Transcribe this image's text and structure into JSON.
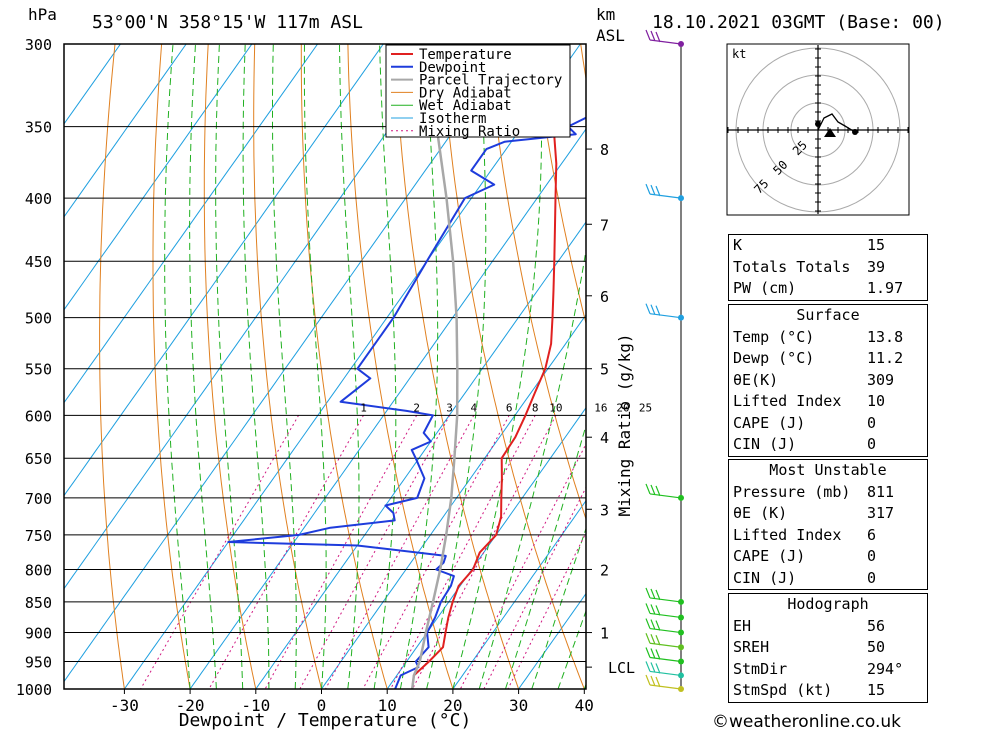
{
  "header": {
    "location": "53°00'N  358°15'W  117m  ASL",
    "datetime": "18.10.2021  03GMT  (Base: 00)",
    "pressure_unit": "hPa",
    "height_unit": "km",
    "height_unit2": "ASL"
  },
  "chart_data": {
    "type": "line",
    "xlabel": "Dewpoint / Temperature (°C)",
    "ylabel_right": "Mixing Ratio (g/kg)",
    "x_ticks": [
      -30,
      -20,
      -10,
      0,
      10,
      20,
      30,
      40
    ],
    "pressure_levels": [
      300,
      350,
      400,
      450,
      500,
      550,
      600,
      650,
      700,
      750,
      800,
      850,
      900,
      950,
      1000
    ],
    "height_labels": [
      {
        "label": "8",
        "p": 365
      },
      {
        "label": "7",
        "p": 420
      },
      {
        "label": "6",
        "p": 480
      },
      {
        "label": "5",
        "p": 550
      },
      {
        "label": "4",
        "p": 625
      },
      {
        "label": "3",
        "p": 715
      },
      {
        "label": "2",
        "p": 800
      },
      {
        "label": "1",
        "p": 900
      },
      {
        "label": "LCL",
        "p": 960
      }
    ],
    "mixing_ratio_labels": [
      "1",
      "2",
      "3",
      "4",
      "6",
      "8",
      "10",
      "16",
      "20",
      "25"
    ],
    "legend": [
      "Temperature",
      "Dewpoint",
      "Parcel Trajectory",
      "Dry Adiabat",
      "Wet Adiabat",
      "Isotherm",
      "Mixing Ratio"
    ],
    "series": [
      {
        "name": "Temperature",
        "color": "#e02020",
        "points": [
          [
            1000,
            13.8
          ],
          [
            975,
            12.6
          ],
          [
            950,
            13.4
          ],
          [
            925,
            14.0
          ],
          [
            900,
            12.8
          ],
          [
            875,
            11.6
          ],
          [
            850,
            10.6
          ],
          [
            825,
            9.8
          ],
          [
            800,
            10.2
          ],
          [
            775,
            9.4
          ],
          [
            750,
            10.0
          ],
          [
            725,
            8.8
          ],
          [
            700,
            6.8
          ],
          [
            675,
            4.8
          ],
          [
            650,
            2.6
          ],
          [
            625,
            2.4
          ],
          [
            600,
            1.6
          ],
          [
            575,
            0.6
          ],
          [
            550,
            -0.4
          ],
          [
            525,
            -2.2
          ],
          [
            500,
            -4.8
          ],
          [
            475,
            -7.6
          ],
          [
            450,
            -10.6
          ],
          [
            425,
            -13.8
          ],
          [
            400,
            -17.2
          ],
          [
            375,
            -20.8
          ],
          [
            350,
            -25.2
          ],
          [
            340,
            -26.2
          ],
          [
            330,
            -28.0
          ],
          [
            320,
            -30.2
          ],
          [
            300,
            -34.0
          ]
        ]
      },
      {
        "name": "Dewpoint",
        "color": "#1e3cdc",
        "points": [
          [
            1000,
            11.2
          ],
          [
            975,
            10.6
          ],
          [
            960,
            12.4
          ],
          [
            950,
            11.4
          ],
          [
            925,
            11.8
          ],
          [
            900,
            10.0
          ],
          [
            875,
            9.6
          ],
          [
            850,
            8.8
          ],
          [
            825,
            8.6
          ],
          [
            810,
            8.0
          ],
          [
            800,
            4.6
          ],
          [
            790,
            5.0
          ],
          [
            780,
            4.6
          ],
          [
            765,
            -10.0
          ],
          [
            760,
            -30.0
          ],
          [
            750,
            -20.0
          ],
          [
            740,
            -16.0
          ],
          [
            730,
            -7.0
          ],
          [
            720,
            -8.0
          ],
          [
            710,
            -10.0
          ],
          [
            700,
            -6.0
          ],
          [
            675,
            -7.0
          ],
          [
            650,
            -10.5
          ],
          [
            640,
            -12.0
          ],
          [
            630,
            -10.0
          ],
          [
            620,
            -12.0
          ],
          [
            600,
            -12.5
          ],
          [
            595,
            -17.0
          ],
          [
            585,
            -28.0
          ],
          [
            560,
            -26.0
          ],
          [
            550,
            -29.0
          ],
          [
            500,
            -29.0
          ],
          [
            450,
            -30.0
          ],
          [
            400,
            -31.0
          ],
          [
            390,
            -28.0
          ],
          [
            380,
            -33.0
          ],
          [
            365,
            -33.0
          ],
          [
            360,
            -31.0
          ],
          [
            355,
            -21.0
          ],
          [
            350,
            -23.0
          ],
          [
            342,
            -20.5
          ],
          [
            335,
            -22.0
          ],
          [
            320,
            -24.0
          ],
          [
            300,
            -25.0
          ]
        ]
      },
      {
        "name": "Parcel Trajectory",
        "color": "#a8a8a8",
        "points": [
          [
            1000,
            13.8
          ],
          [
            975,
            12.6
          ],
          [
            950,
            12.0
          ],
          [
            900,
            9.8
          ],
          [
            850,
            7.6
          ],
          [
            800,
            5.2
          ],
          [
            750,
            2.4
          ],
          [
            700,
            -0.8
          ],
          [
            650,
            -4.6
          ],
          [
            600,
            -8.8
          ],
          [
            550,
            -13.8
          ],
          [
            500,
            -19.4
          ],
          [
            450,
            -26.0
          ],
          [
            400,
            -33.8
          ],
          [
            350,
            -43.0
          ],
          [
            300,
            -54.0
          ]
        ]
      }
    ]
  },
  "hodograph": {
    "unit": "kt",
    "rings": [
      "25",
      "50",
      "75"
    ]
  },
  "indices": [
    {
      "label": "K",
      "value": "15"
    },
    {
      "label": "Totals Totals",
      "value": "39"
    },
    {
      "label": "PW (cm)",
      "value": "1.97"
    }
  ],
  "surface": {
    "title": "Surface",
    "rows": [
      {
        "label": "Temp (°C)",
        "value": "13.8"
      },
      {
        "label": "Dewp (°C)",
        "value": "11.2"
      },
      {
        "label": "θE(K)",
        "value": "309"
      },
      {
        "label": "Lifted Index",
        "value": "10"
      },
      {
        "label": "CAPE (J)",
        "value": "0"
      },
      {
        "label": "CIN (J)",
        "value": "0"
      }
    ]
  },
  "most_unstable": {
    "title": "Most Unstable",
    "rows": [
      {
        "label": "Pressure (mb)",
        "value": "811"
      },
      {
        "label": "θE (K)",
        "value": "317"
      },
      {
        "label": "Lifted Index",
        "value": "6"
      },
      {
        "label": "CAPE (J)",
        "value": "0"
      },
      {
        "label": "CIN (J)",
        "value": "0"
      }
    ]
  },
  "hodograph_stats": {
    "title": "Hodograph",
    "rows": [
      {
        "label": "EH",
        "value": "56"
      },
      {
        "label": "SREH",
        "value": "50"
      },
      {
        "label": "StmDir",
        "value": "294°"
      },
      {
        "label": "StmSpd (kt)",
        "value": "15"
      }
    ]
  },
  "footer": "©weatheronline.co.uk",
  "colors": {
    "temperature": "#e02020",
    "dewpoint": "#1e3cdc",
    "parcel": "#a8a8a8",
    "dry_adiabat": "#e08020",
    "wet_adiabat": "#20b020",
    "isotherm": "#20a0e0",
    "mixing_ratio": "#d01880"
  }
}
